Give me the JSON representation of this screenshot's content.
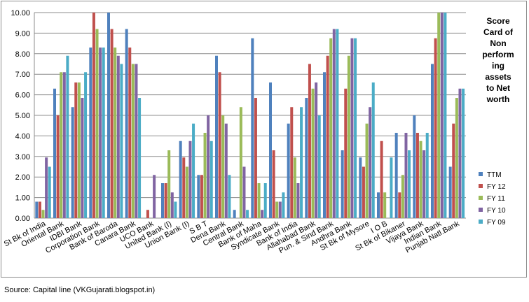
{
  "chart_data": {
    "type": "bar",
    "title": "Score Card of Non performing assets to Net worth",
    "title_lines": [
      "Score",
      "Card of",
      "Non",
      "perform",
      "ing",
      "assets",
      "to Net",
      "worth"
    ],
    "xlabel": "",
    "ylabel": "",
    "ylim": [
      0,
      10
    ],
    "yticks": [
      "0.00",
      "1.00",
      "2.00",
      "3.00",
      "4.00",
      "5.00",
      "6.00",
      "7.00",
      "8.00",
      "9.00",
      "10.00"
    ],
    "grid": true,
    "legend_position": "right",
    "categories": [
      "St Bk of India",
      "Oriental Bank",
      "IDBI Bank",
      "Corporation Bank",
      "Bank of Baroda",
      "Canara Bank",
      "UCO Bank",
      "United Bank (I)",
      "Union Bank (I)",
      "S B T",
      "Dena Bank",
      "Central Bank",
      "Bank of Maha",
      "Syndicate Bank",
      "Bank of India",
      "Allahabad Bank",
      "Pun. & Sind Bank",
      "Andhra Bank",
      "St Bk of Mysore",
      "I O B",
      "St Bk of Bikaner",
      "Vijaya Bank",
      "Indian Bank",
      "Punjab Natl.Bank"
    ],
    "series": [
      {
        "name": "TTM",
        "color": "#4f81bd",
        "values": [
          0.8,
          6.3,
          5.4,
          8.3,
          10.0,
          9.2,
          0.0,
          1.7,
          3.75,
          2.1,
          7.9,
          0.4,
          8.75,
          6.6,
          4.6,
          5.85,
          7.1,
          3.3,
          2.95,
          1.25,
          4.15,
          5.0,
          7.5,
          2.5
        ]
      },
      {
        "name": "FY 12",
        "color": "#c0504d",
        "values": [
          0.8,
          5.0,
          6.6,
          10.0,
          9.2,
          8.3,
          0.4,
          1.7,
          2.95,
          2.1,
          7.1,
          0.0,
          5.85,
          3.3,
          5.4,
          7.5,
          7.9,
          6.3,
          2.5,
          3.75,
          1.25,
          4.15,
          8.75,
          4.6
        ]
      },
      {
        "name": "FY 11",
        "color": "#9bbb59",
        "values": [
          0.4,
          7.1,
          6.6,
          9.2,
          8.3,
          7.5,
          0.0,
          3.3,
          2.5,
          4.15,
          5.0,
          5.4,
          1.7,
          0.8,
          2.95,
          6.3,
          8.75,
          7.9,
          4.6,
          1.25,
          2.1,
          3.75,
          10.0,
          5.85
        ]
      },
      {
        "name": "FY 10",
        "color": "#8064a2",
        "values": [
          2.95,
          7.1,
          5.85,
          8.3,
          7.9,
          7.5,
          2.1,
          1.25,
          3.75,
          5.0,
          4.6,
          2.5,
          0.4,
          0.8,
          1.7,
          6.6,
          9.2,
          8.75,
          5.4,
          0.0,
          4.15,
          3.3,
          10.0,
          6.3
        ]
      },
      {
        "name": "FY 09",
        "color": "#4bacc6",
        "values": [
          2.5,
          7.9,
          7.1,
          8.3,
          7.5,
          5.85,
          0.0,
          0.8,
          4.6,
          3.75,
          2.1,
          0.4,
          1.7,
          1.25,
          5.4,
          5.0,
          9.2,
          8.75,
          6.6,
          2.95,
          3.3,
          4.15,
          10.0,
          6.3
        ]
      }
    ]
  },
  "source": "Source: Capital line (VKGujarati.blogspot.in)"
}
